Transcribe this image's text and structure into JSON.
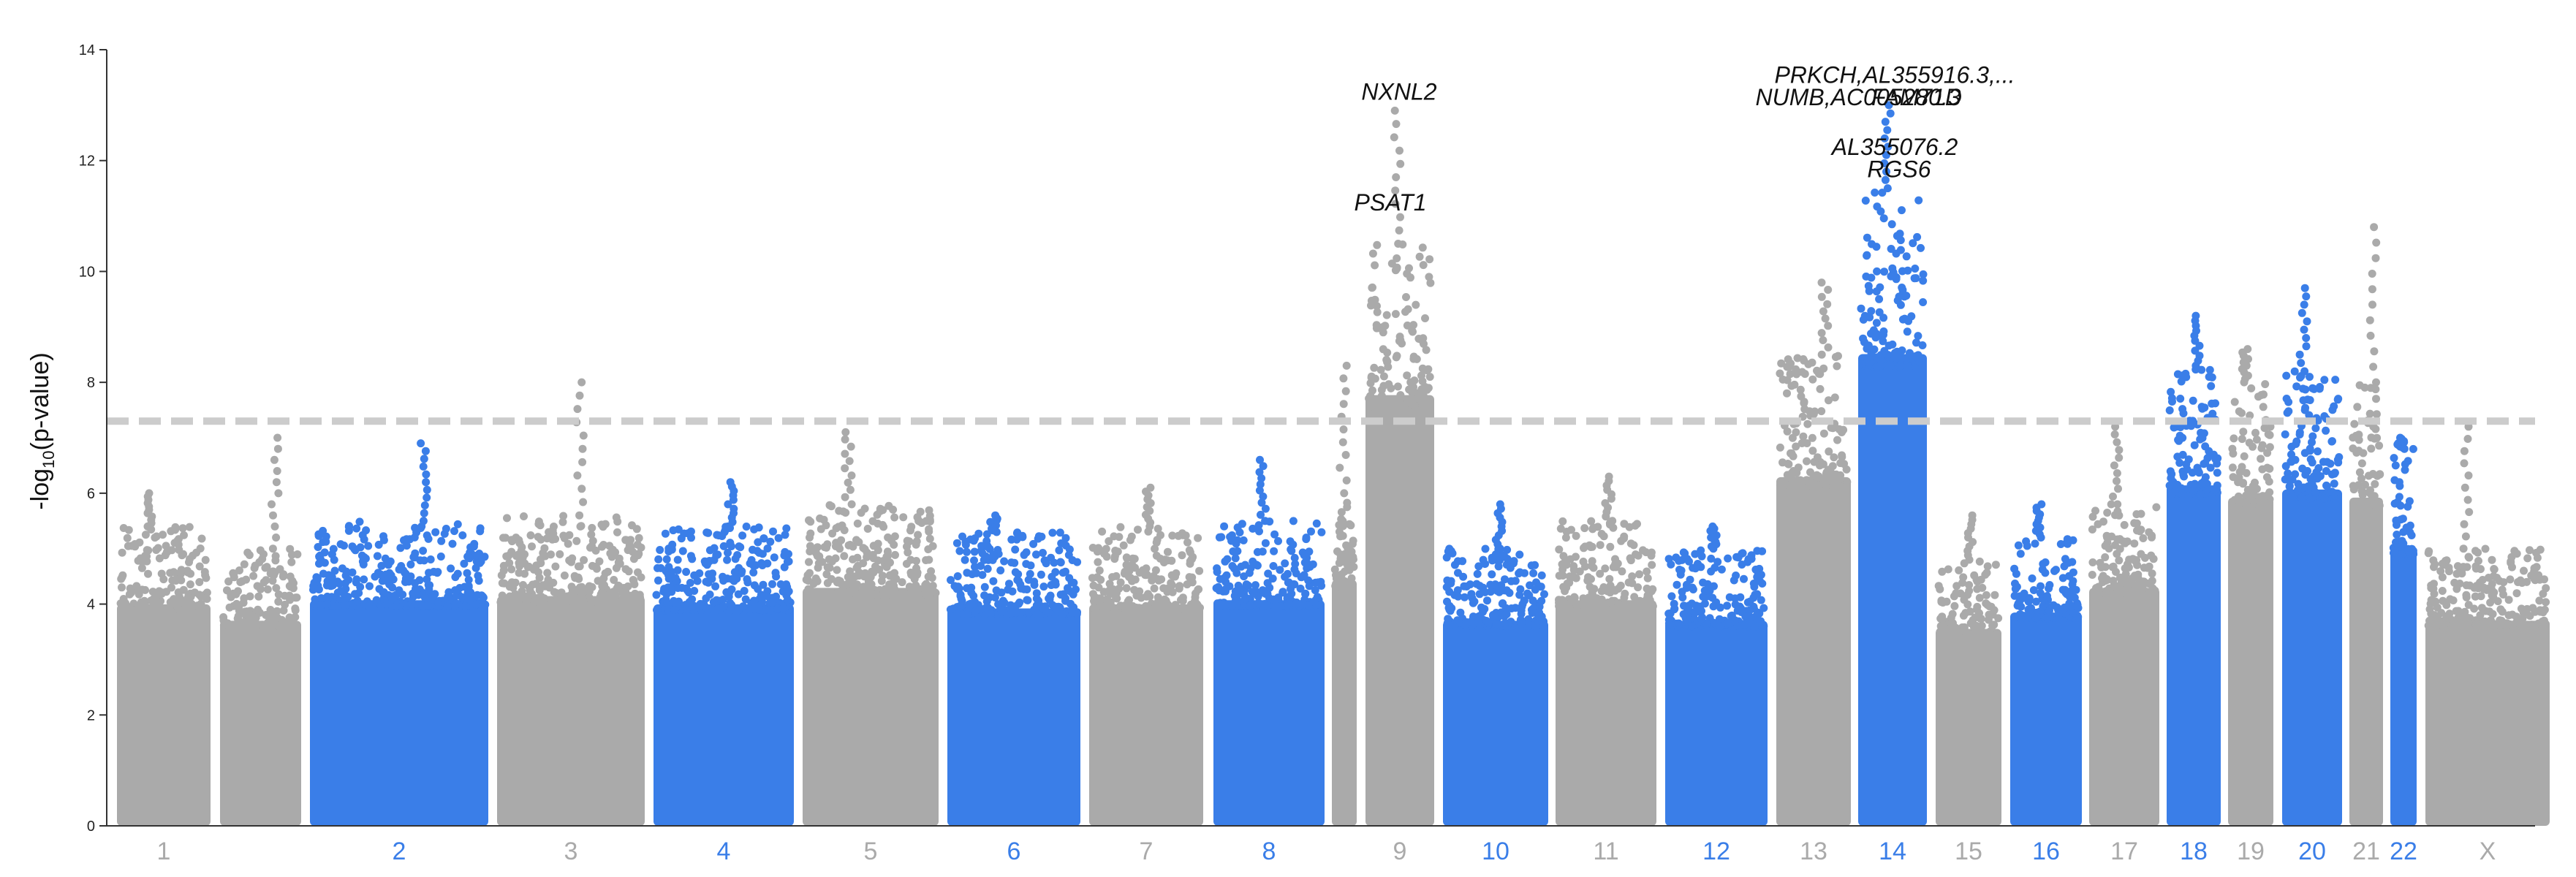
{
  "chart_data": {
    "type": "scatter",
    "subtype": "manhattan",
    "title": "",
    "xlabel": "",
    "ylabel_main": "-log",
    "ylabel_sub": "10",
    "ylabel_end": "(p-value)",
    "ylim": [
      0,
      14
    ],
    "yticks": [
      "0",
      "2",
      "4",
      "6",
      "8",
      "10",
      "12",
      "14"
    ],
    "significance_line": 7.3,
    "colors": {
      "gray": "#aaaaaa",
      "blue": "#3a7ee8",
      "threshold": "#cccccc"
    },
    "chromosomes": [
      {
        "label": "1",
        "color": "gray",
        "top": 5.4,
        "peak": 6.0
      },
      {
        "label": "",
        "color": "gray",
        "top": 5.0,
        "peak": 7.0
      },
      {
        "label": "2",
        "color": "blue",
        "top": 5.5,
        "peak": 6.9
      },
      {
        "label": "3",
        "color": "gray",
        "top": 5.6,
        "peak": 8.0
      },
      {
        "label": "4",
        "color": "blue",
        "top": 5.4,
        "peak": 6.2
      },
      {
        "label": "5",
        "color": "gray",
        "top": 5.8,
        "peak": 7.1
      },
      {
        "label": "6",
        "color": "blue",
        "top": 5.3,
        "peak": 5.6
      },
      {
        "label": "7",
        "color": "gray",
        "top": 5.4,
        "peak": 6.1
      },
      {
        "label": "8",
        "color": "blue",
        "top": 5.5,
        "peak": 6.6
      },
      {
        "label": "",
        "color": "gray",
        "top": 6.0,
        "peak": 8.3
      },
      {
        "label": "9",
        "color": "gray",
        "top": 10.5,
        "peak": 12.9
      },
      {
        "label": "10",
        "color": "blue",
        "top": 5.0,
        "peak": 5.8
      },
      {
        "label": "11",
        "color": "gray",
        "top": 5.5,
        "peak": 6.3
      },
      {
        "label": "12",
        "color": "blue",
        "top": 5.0,
        "peak": 5.4
      },
      {
        "label": "13",
        "color": "gray",
        "top": 8.5,
        "peak": 9.8
      },
      {
        "label": "14",
        "color": "blue",
        "top": 11.5,
        "peak": 13.0
      },
      {
        "label": "15",
        "color": "gray",
        "top": 4.8,
        "peak": 5.6
      },
      {
        "label": "16",
        "color": "blue",
        "top": 5.2,
        "peak": 5.8
      },
      {
        "label": "17",
        "color": "gray",
        "top": 5.8,
        "peak": 7.2
      },
      {
        "label": "18",
        "color": "blue",
        "top": 8.3,
        "peak": 9.2
      },
      {
        "label": "19",
        "color": "gray",
        "top": 8.0,
        "peak": 8.6
      },
      {
        "label": "20",
        "color": "blue",
        "top": 8.2,
        "peak": 9.7
      },
      {
        "label": "21",
        "color": "gray",
        "top": 8.0,
        "peak": 10.8
      },
      {
        "label": "22",
        "color": "blue",
        "top": 6.8,
        "peak": 7.0
      },
      {
        "label": "X",
        "color": "gray",
        "top": 5.0,
        "peak": 7.2
      }
    ],
    "annotations": [
      {
        "text": "NXNL2",
        "chrom": "9",
        "y": 13.1
      },
      {
        "text": "PSAT1",
        "chrom": "9",
        "y": 11.1
      },
      {
        "text": "PRKCH,AL355916.3,...",
        "chrom": "14",
        "y": 13.4
      },
      {
        "text": "NUMB,AC005280.3",
        "chrom": "14",
        "y": 13.0
      },
      {
        "text": "FAM71D",
        "chrom": "14",
        "y": 13.0
      },
      {
        "text": "AL355076.2",
        "chrom": "14",
        "y": 12.1
      },
      {
        "text": "RGS6",
        "chrom": "14",
        "y": 11.7
      }
    ]
  }
}
